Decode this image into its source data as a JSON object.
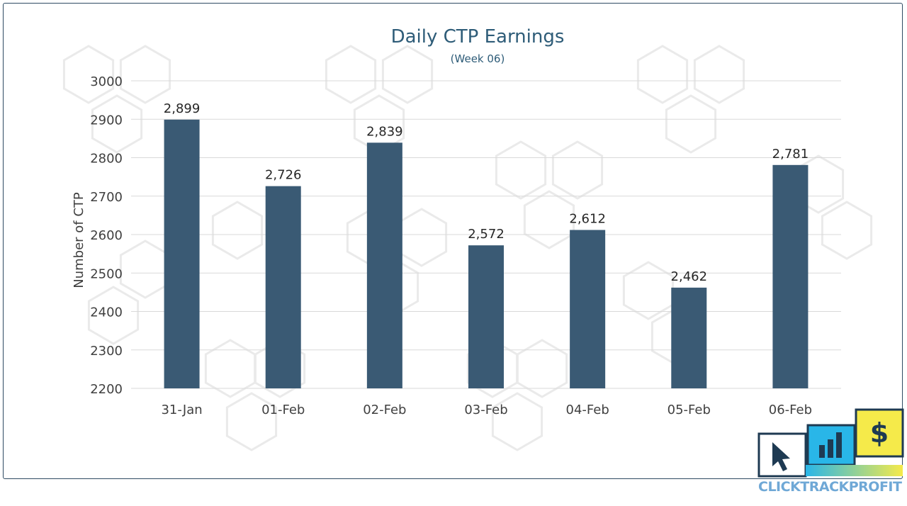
{
  "chart_data": {
    "type": "bar",
    "title": "Daily CTP Earnings",
    "subtitle": "(Week 06)",
    "ylabel": "Number of CTP",
    "xlabel": "",
    "categories": [
      "31-Jan",
      "01-Feb",
      "02-Feb",
      "03-Feb",
      "04-Feb",
      "05-Feb",
      "06-Feb"
    ],
    "values": [
      2899,
      2726,
      2839,
      2572,
      2612,
      2462,
      2781
    ],
    "data_labels": [
      "2,899",
      "2,726",
      "2,839",
      "2,572",
      "2,612",
      "2,462",
      "2,781"
    ],
    "ylim": [
      2200,
      3000
    ],
    "yticks": [
      2200,
      2300,
      2400,
      2500,
      2600,
      2700,
      2800,
      2900,
      3000
    ],
    "grid": true,
    "legend": "none",
    "colors": {
      "bar": "#3a5a74",
      "title": "#2e5c78",
      "frame": "#2e4b63"
    }
  },
  "logo": {
    "wordmark": "CLICKTRACKPROFIT",
    "icons": [
      "cursor-icon",
      "bar-chart-icon",
      "dollar-icon"
    ],
    "dollar_glyph": "$",
    "colors": {
      "blue": "#29b6e8",
      "yellow": "#f5ea4a",
      "dark": "#1e3a52"
    }
  }
}
